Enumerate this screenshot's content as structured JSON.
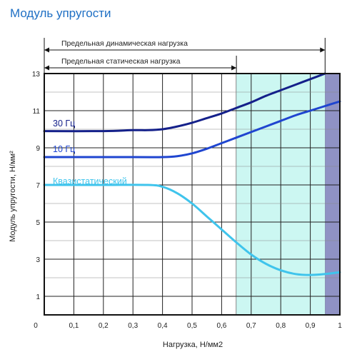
{
  "chart_data": {
    "type": "line",
    "title": "Модуль упругости",
    "xlabel": "Нагрузка, Н/мм2",
    "ylabel": "Модуль упругости, Н/мм²",
    "xlim": [
      0,
      1
    ],
    "ylim": [
      0,
      13
    ],
    "x_ticks": [
      "0,1",
      "0,2",
      "0,3",
      "0,4",
      "0,5",
      "0,6",
      "0,7",
      "0,8",
      "0,9",
      "1"
    ],
    "y_ticks": [
      "1",
      "3",
      "5",
      "7",
      "9",
      "11",
      "13"
    ],
    "grid": true,
    "ranges": [
      {
        "label": "Предельная динамическая нагрузка",
        "from": 0,
        "to": 0.95
      },
      {
        "label": "Предельная статическая нагрузка",
        "from": 0,
        "to": 0.65
      }
    ],
    "zones": [
      {
        "from": 0.65,
        "to": 0.95,
        "color": "#ccf7f2"
      },
      {
        "from": 0.95,
        "to": 1.0,
        "color": "#8f92c4"
      }
    ],
    "series": [
      {
        "name": "30 Гц",
        "color": "#14208a",
        "x": [
          0,
          0.2,
          0.3,
          0.35,
          0.4,
          0.45,
          0.5,
          0.55,
          0.6,
          0.65,
          0.7,
          0.75,
          0.8,
          0.85,
          0.9,
          0.95
        ],
        "y": [
          9.9,
          9.9,
          9.95,
          9.95,
          10.0,
          10.15,
          10.35,
          10.6,
          10.85,
          11.15,
          11.45,
          11.8,
          12.1,
          12.4,
          12.7,
          13.0
        ]
      },
      {
        "name": "10 Гц",
        "color": "#1f45d0",
        "x": [
          0,
          0.3,
          0.4,
          0.45,
          0.5,
          0.55,
          0.6,
          0.65,
          0.7,
          0.75,
          0.8,
          0.85,
          0.9,
          0.95,
          1.0
        ],
        "y": [
          8.5,
          8.5,
          8.5,
          8.55,
          8.7,
          8.95,
          9.25,
          9.55,
          9.85,
          10.15,
          10.45,
          10.75,
          11.0,
          11.25,
          11.5
        ]
      },
      {
        "name": "Квазистатический",
        "color": "#3fc4ec",
        "x": [
          0,
          0.2,
          0.35,
          0.4,
          0.45,
          0.5,
          0.55,
          0.6,
          0.65,
          0.7,
          0.75,
          0.8,
          0.85,
          0.9,
          0.95,
          1.0
        ],
        "y": [
          7.0,
          7.0,
          7.0,
          6.9,
          6.55,
          6.0,
          5.3,
          4.6,
          3.9,
          3.25,
          2.75,
          2.4,
          2.2,
          2.15,
          2.2,
          2.3
        ]
      }
    ]
  }
}
